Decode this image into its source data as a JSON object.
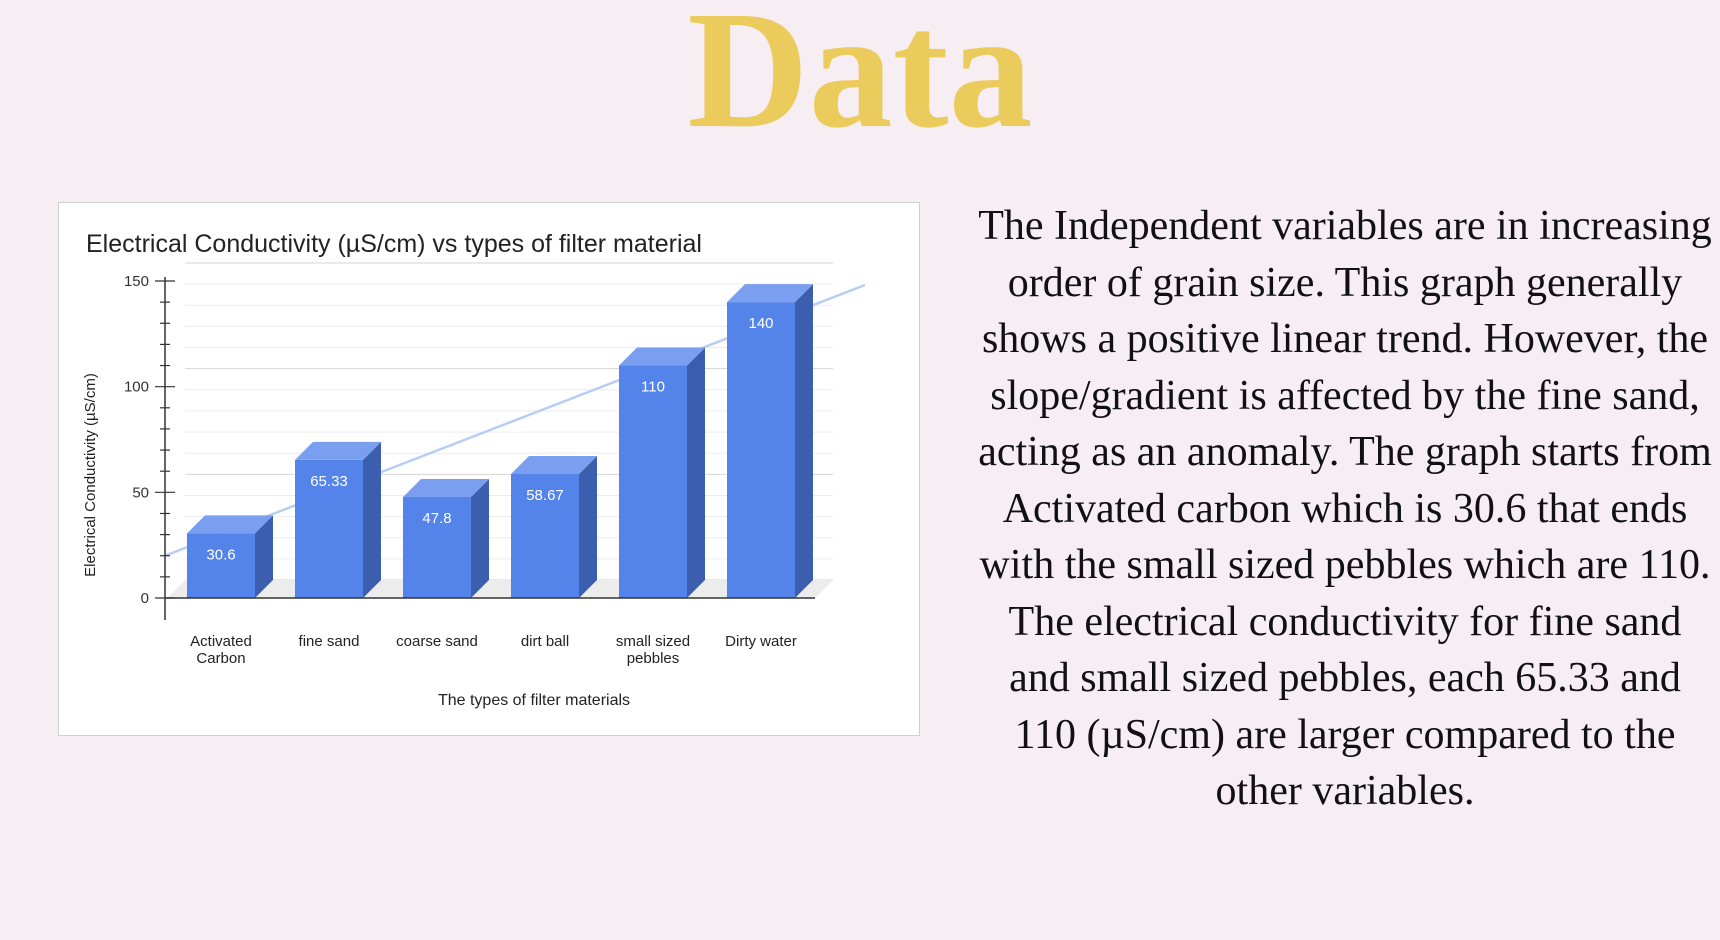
{
  "page": {
    "title": "Data",
    "paragraphs": [
      "The Independent variables are in increasing order of grain size. This graph generally shows a positive linear trend. However, the slope/gradient is affected by the fine sand, acting as an anomaly. The graph starts from Activated carbon which is 30.6 that ends with the small sized pebbles which are 110.",
      "The electrical conductivity for fine sand and small sized pebbles, each 65.33 and 110 (µS/cm) are larger compared to the other variables."
    ]
  },
  "colors": {
    "background": "#f7eef4",
    "title": "#ebcb5c",
    "bar_front": "#5484ea",
    "bar_side": "#3b5eaf",
    "bar_top": "#7b9ff0",
    "trendline": "#b7cdf5",
    "grid": "#e4e4e4",
    "text": "#222222"
  },
  "chart_data": {
    "type": "bar",
    "style": "3d",
    "title": "Electrical Conductivity (µS/cm) vs types of filter material",
    "xlabel": "The types of filter materials",
    "ylabel": "Electrical Conductivity (µS/cm)",
    "ylim": [
      0,
      150
    ],
    "yticks": [
      0,
      50,
      100,
      150
    ],
    "grid": true,
    "legend": "none",
    "trendline": "linear",
    "categories": [
      [
        "Activated",
        "Carbon"
      ],
      [
        "fine sand"
      ],
      [
        "coarse sand"
      ],
      [
        "dirt ball"
      ],
      [
        "small sized",
        "pebbles"
      ],
      [
        "Dirty water"
      ]
    ],
    "values": [
      30.6,
      65.33,
      47.8,
      58.67,
      110,
      140
    ],
    "data_labels": [
      "30.6",
      "65.33",
      "47.8",
      "58.67",
      "110",
      "140"
    ]
  }
}
